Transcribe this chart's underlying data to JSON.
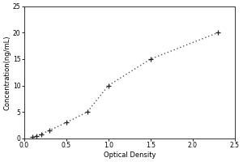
{
  "x_data": [
    0.1,
    0.15,
    0.2,
    0.3,
    0.5,
    0.75,
    1.0,
    1.5,
    2.3
  ],
  "y_data": [
    0.3,
    0.5,
    0.8,
    1.5,
    3.0,
    5.0,
    10.0,
    15.0,
    20.0
  ],
  "xlabel": "Optical Density",
  "ylabel": "Concentration(ng/mL)",
  "xlim": [
    0,
    2.5
  ],
  "ylim": [
    0,
    25
  ],
  "xticks": [
    0,
    0.5,
    1,
    1.5,
    2,
    2.5
  ],
  "yticks": [
    0,
    5,
    10,
    15,
    20,
    25
  ],
  "line_color": "#555555",
  "marker_color": "#222222",
  "bg_color": "#ffffff",
  "tick_fontsize": 5.5,
  "label_fontsize": 6.0
}
